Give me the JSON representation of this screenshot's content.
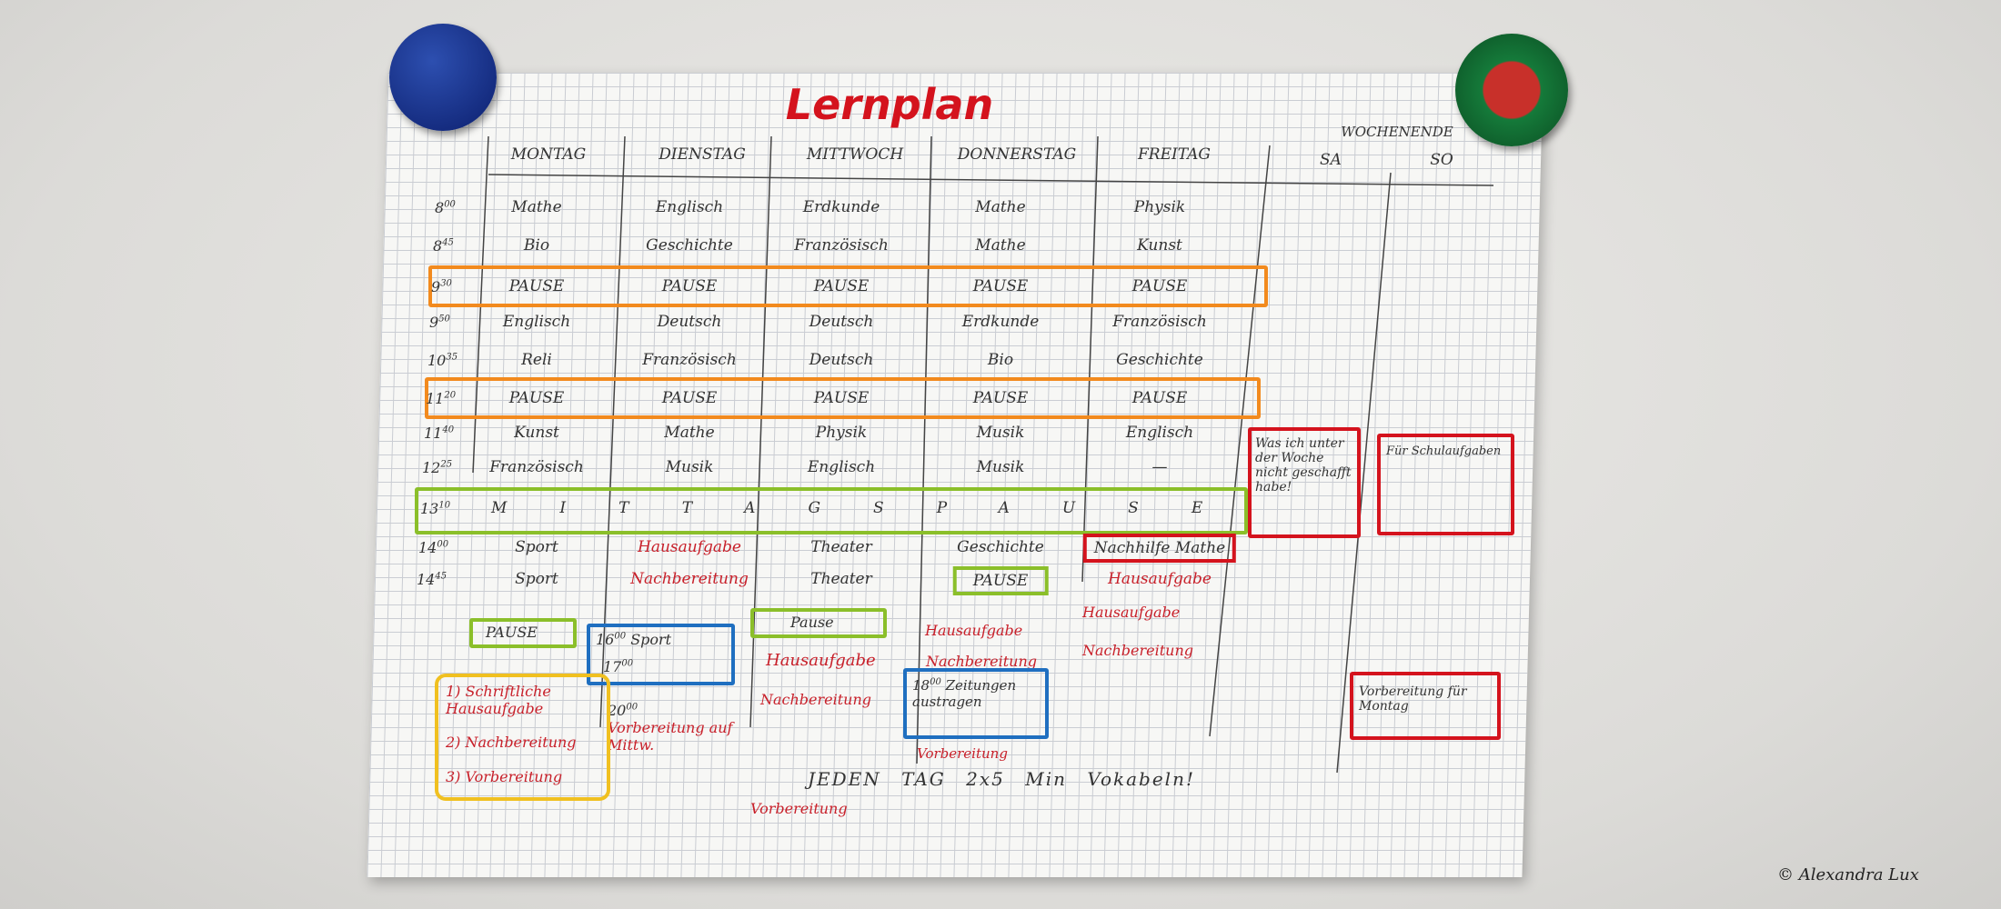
{
  "title": "Lernplan",
  "days": [
    "MONTAG",
    "DIENSTAG",
    "MITTWOCH",
    "DONNERSTAG",
    "FREITAG"
  ],
  "weekend": {
    "label": "WOCHENENDE",
    "days": [
      "SA",
      "SO"
    ]
  },
  "times": [
    {
      "h": "8",
      "m": "00"
    },
    {
      "h": "8",
      "m": "45"
    },
    {
      "h": "9",
      "m": "30"
    },
    {
      "h": "9",
      "m": "50"
    },
    {
      "h": "10",
      "m": "35"
    },
    {
      "h": "11",
      "m": "20"
    },
    {
      "h": "11",
      "m": "40"
    },
    {
      "h": "12",
      "m": "25"
    },
    {
      "h": "13",
      "m": "10"
    },
    {
      "h": "14",
      "m": "00"
    },
    {
      "h": "14",
      "m": "45"
    }
  ],
  "rows": [
    [
      "Mathe",
      "Englisch",
      "Erdkunde",
      "Mathe",
      "Physik"
    ],
    [
      "Bio",
      "Geschichte",
      "Französisch",
      "Mathe",
      "Kunst"
    ],
    [
      "PAUSE",
      "PAUSE",
      "PAUSE",
      "PAUSE",
      "PAUSE"
    ],
    [
      "Englisch",
      "Deutsch",
      "Deutsch",
      "Erdkunde",
      "Französisch"
    ],
    [
      "Reli",
      "Französisch",
      "Deutsch",
      "Bio",
      "Geschichte"
    ],
    [
      "PAUSE",
      "PAUSE",
      "PAUSE",
      "PAUSE",
      "PAUSE"
    ],
    [
      "Kunst",
      "Mathe",
      "Physik",
      "Musik",
      "Englisch"
    ],
    [
      "Französisch",
      "Musik",
      "Englisch",
      "Musik",
      "—"
    ],
    "MITTAGSPAUSE",
    [
      "Sport",
      "Hausaufgabe",
      "Theater",
      "Geschichte",
      "Nachhilfe Mathe"
    ],
    [
      "Sport",
      "Nachbereitung",
      "Theater",
      "PAUSE",
      "Hausaufgabe"
    ]
  ],
  "notes": {
    "mo_pause": "PAUSE",
    "di_sport": {
      "start": {
        "h": "16",
        "m": "00"
      },
      "text": "Sport",
      "end": {
        "h": "17",
        "m": "00"
      }
    },
    "di_vorbereitung": {
      "time": {
        "h": "20",
        "m": "00"
      },
      "text": "Vorbereitung auf Mittw."
    },
    "mi_pause": "Pause",
    "mi_hausaufgabe": "Hausaufgabe",
    "mi_nachbereitung": "Nachbereitung",
    "do_hausaufgabe": "Hausaufgabe",
    "do_nachbereitung": "Nachbereitung",
    "do_zeitung": {
      "time": {
        "h": "18",
        "m": "00"
      },
      "text": "Zeitungen austragen"
    },
    "do_vorbereitung": "Vorbereitung",
    "vorbereitung_bottom": "Vorbereitung",
    "fr_hausaufgabe": "Hausaufgabe",
    "fr_nachbereitung": "Nachbereitung",
    "legend": [
      "1) Schriftliche Hausaufgabe",
      "2) Nachbereitung",
      "3) Vorbereitung"
    ],
    "sa_note": "Was ich unter der Woche nicht geschafft habe!",
    "so_note": "Für Schulaufgaben",
    "so_montag": "Vorbereitung für Montag"
  },
  "footer": "JEDEN TAG 2x5 Min Vokabeln!",
  "credit": "© Alexandra Lux"
}
